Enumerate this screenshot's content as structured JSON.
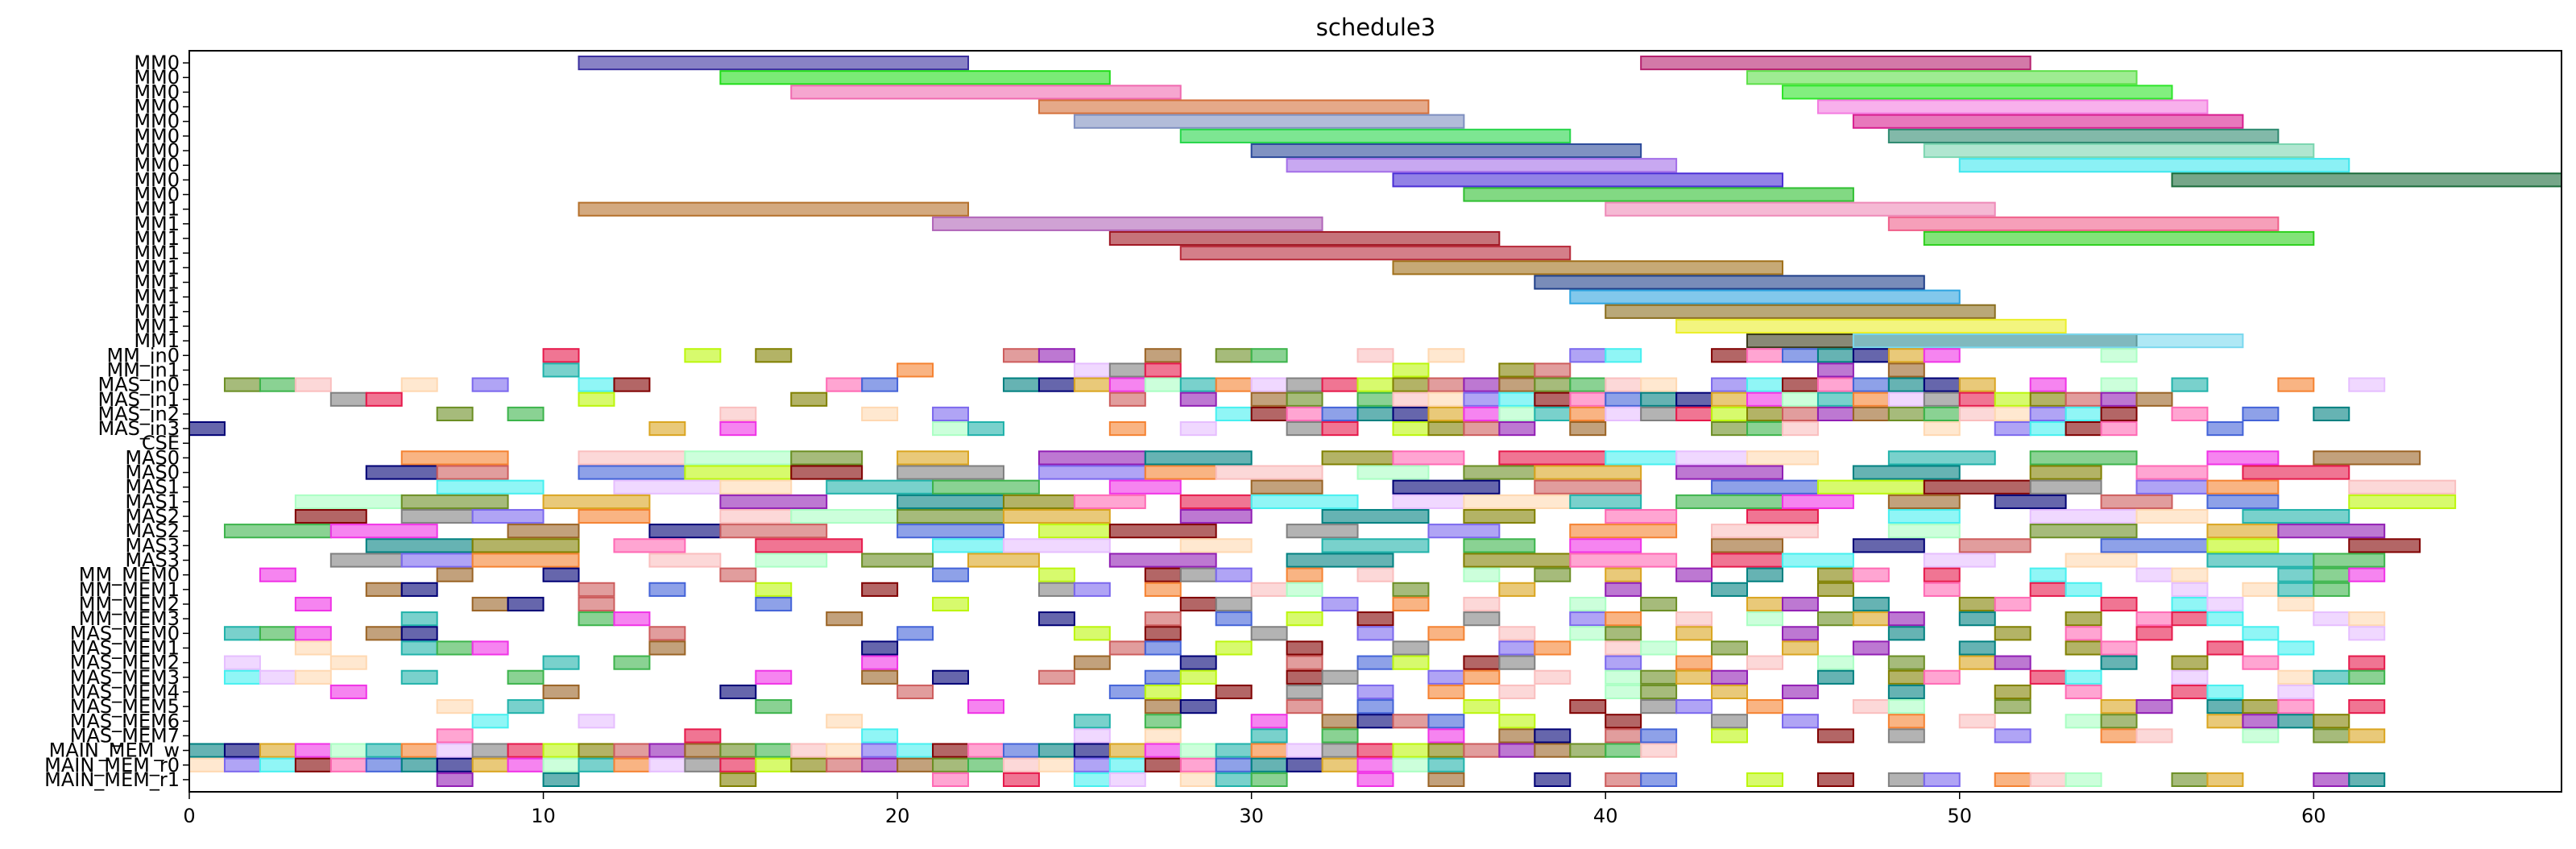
{
  "chart_data": {
    "type": "gantt",
    "title": "schedule3",
    "xlabel": "",
    "ylabel": "",
    "xlim": [
      0,
      67
    ],
    "xticks": [
      0,
      10,
      20,
      30,
      40,
      50,
      60
    ],
    "grid": false,
    "legend": "none",
    "rows": [
      "MM0",
      "MM0",
      "MM0",
      "MM0",
      "MM0",
      "MM0",
      "MM0",
      "MM0",
      "MM0",
      "MM0",
      "MM1",
      "MM1",
      "MM1",
      "MM1",
      "MM1",
      "MM1",
      "MM1",
      "MM1",
      "MM1",
      "MM1",
      "MM_in0",
      "MM_in1",
      "MAS_in0",
      "MAS_in1",
      "MAS_in2",
      "MAS_in3",
      "CSE",
      "MAS0",
      "MAS0",
      "MAS1",
      "MAS1",
      "MAS2",
      "MAS2",
      "MAS3",
      "MAS3",
      "MM_MEM0",
      "MM_MEM1",
      "MM_MEM2",
      "MM_MEM3",
      "MAS_MEM0",
      "MAS_MEM1",
      "MAS_MEM2",
      "MAS_MEM3",
      "MAS_MEM4",
      "MAS_MEM5",
      "MAS_MEM6",
      "MAS_MEM7",
      "MAIN_MEM_w",
      "MAIN_MEM_r0",
      "MAIN_MEM_r1"
    ],
    "tasks": [
      {
        "row": 0,
        "start": 11,
        "end": 22,
        "color": "#3b2f9e"
      },
      {
        "row": 0,
        "start": 41,
        "end": 52,
        "color": "#b5206e"
      },
      {
        "row": 1,
        "start": 15,
        "end": 26,
        "color": "#22dd1a"
      },
      {
        "row": 1,
        "start": 44,
        "end": 55,
        "color": "#5ee04a"
      },
      {
        "row": 2,
        "start": 17,
        "end": 28,
        "color": "#f06ab0"
      },
      {
        "row": 2,
        "start": 45,
        "end": 56,
        "color": "#2ee52a"
      },
      {
        "row": 3,
        "start": 24,
        "end": 35,
        "color": "#d4703a"
      },
      {
        "row": 3,
        "start": 46,
        "end": 57,
        "color": "#f37ce0"
      },
      {
        "row": 4,
        "start": 25,
        "end": 36,
        "color": "#7f8fc0"
      },
      {
        "row": 4,
        "start": 47,
        "end": 58,
        "color": "#d81e8f"
      },
      {
        "row": 5,
        "start": 28,
        "end": 39,
        "color": "#27d64a"
      },
      {
        "row": 5,
        "start": 48,
        "end": 59,
        "color": "#2e8a70"
      },
      {
        "row": 6,
        "start": 30,
        "end": 41,
        "color": "#2b4a9a"
      },
      {
        "row": 6,
        "start": 49,
        "end": 60,
        "color": "#7cd6b0"
      },
      {
        "row": 7,
        "start": 31,
        "end": 42,
        "color": "#a36ee8"
      },
      {
        "row": 7,
        "start": 50,
        "end": 61,
        "color": "#3ee8ee"
      },
      {
        "row": 8,
        "start": 34,
        "end": 45,
        "color": "#4a2ed6"
      },
      {
        "row": 8,
        "start": 56,
        "end": 67,
        "color": "#1a6b3a"
      },
      {
        "row": 9,
        "start": 36,
        "end": 47,
        "color": "#2ebf30"
      },
      {
        "row": 10,
        "start": 11,
        "end": 22,
        "color": "#b5702a"
      },
      {
        "row": 10,
        "start": 40,
        "end": 51,
        "color": "#ee8ab8"
      },
      {
        "row": 11,
        "start": 21,
        "end": 32,
        "color": "#b064b8"
      },
      {
        "row": 11,
        "start": 48,
        "end": 59,
        "color": "#f05f8a"
      },
      {
        "row": 12,
        "start": 26,
        "end": 37,
        "color": "#a01622"
      },
      {
        "row": 12,
        "start": 49,
        "end": 60,
        "color": "#2ed01e"
      },
      {
        "row": 13,
        "start": 28,
        "end": 39,
        "color": "#b82a3a"
      },
      {
        "row": 14,
        "start": 34,
        "end": 45,
        "color": "#a0701a"
      },
      {
        "row": 15,
        "start": 38,
        "end": 49,
        "color": "#1f3f8a"
      },
      {
        "row": 16,
        "start": 39,
        "end": 50,
        "color": "#2ea4e0"
      },
      {
        "row": 17,
        "start": 40,
        "end": 51,
        "color": "#8a6e1e"
      },
      {
        "row": 18,
        "start": 42,
        "end": 53,
        "color": "#ebef2a"
      },
      {
        "row": 19,
        "start": 44,
        "end": 55,
        "color": "#3a3a1a"
      },
      {
        "row": 19,
        "start": 47,
        "end": 58,
        "color": "#7ad8ee"
      }
    ],
    "small_blocks": [
      {
        "start": 0,
        "end": 42,
        "rows": [
          20,
          21,
          22,
          23,
          24,
          25,
          26,
          27,
          28,
          29,
          30,
          31,
          32,
          33,
          34,
          35,
          36,
          37,
          38,
          39,
          40,
          41,
          42,
          43,
          44,
          45,
          46,
          47,
          48,
          49
        ],
        "density": "varies"
      }
    ],
    "dense_rows": {
      "MM_in0": [
        [
          10,
          11
        ],
        [
          14,
          15
        ],
        [
          16,
          17
        ],
        [
          23,
          24
        ],
        [
          24,
          25
        ],
        [
          27,
          28
        ],
        [
          29,
          30
        ],
        [
          30,
          31
        ],
        [
          33,
          34
        ],
        [
          35,
          36
        ],
        [
          39,
          40
        ],
        [
          40,
          41
        ],
        [
          43,
          44
        ],
        [
          44,
          45
        ],
        [
          45,
          46
        ],
        [
          46,
          47
        ],
        [
          47,
          48
        ],
        [
          48,
          49
        ],
        [
          49,
          50
        ],
        [
          54,
          55
        ]
      ],
      "MM_in1": [
        [
          10,
          11
        ],
        [
          20,
          21
        ],
        [
          25,
          26
        ],
        [
          26,
          27
        ],
        [
          27,
          28
        ],
        [
          34,
          35
        ],
        [
          37,
          38
        ],
        [
          38,
          39
        ],
        [
          46,
          47
        ],
        [
          48,
          49
        ]
      ],
      "MAS_in0": [
        [
          1,
          2
        ],
        [
          2,
          3
        ],
        [
          3,
          4
        ],
        [
          6,
          7
        ],
        [
          8,
          9
        ],
        [
          11,
          12
        ],
        [
          12,
          13
        ],
        [
          18,
          19
        ],
        [
          19,
          20
        ],
        [
          23,
          24
        ],
        [
          24,
          25
        ],
        [
          25,
          26
        ],
        [
          26,
          27
        ],
        [
          27,
          28
        ],
        [
          28,
          29
        ],
        [
          29,
          30
        ],
        [
          30,
          31
        ],
        [
          31,
          32
        ],
        [
          32,
          33
        ],
        [
          33,
          34
        ],
        [
          34,
          35
        ],
        [
          35,
          36
        ],
        [
          36,
          37
        ],
        [
          37,
          38
        ],
        [
          38,
          39
        ],
        [
          39,
          40
        ],
        [
          40,
          41
        ],
        [
          41,
          42
        ],
        [
          43,
          44
        ],
        [
          44,
          45
        ],
        [
          45,
          46
        ],
        [
          46,
          47
        ],
        [
          47,
          48
        ],
        [
          48,
          49
        ],
        [
          49,
          50
        ],
        [
          50,
          51
        ],
        [
          52,
          53
        ],
        [
          54,
          55
        ],
        [
          56,
          57
        ],
        [
          59,
          60
        ],
        [
          61,
          62
        ]
      ],
      "MAS_in1": [
        [
          4,
          5
        ],
        [
          5,
          6
        ],
        [
          11,
          12
        ],
        [
          17,
          18
        ],
        [
          26,
          27
        ],
        [
          28,
          29
        ],
        [
          30,
          31
        ],
        [
          31,
          32
        ],
        [
          33,
          34
        ],
        [
          34,
          35
        ],
        [
          35,
          36
        ],
        [
          36,
          37
        ],
        [
          37,
          38
        ],
        [
          38,
          39
        ],
        [
          39,
          40
        ],
        [
          40,
          41
        ],
        [
          41,
          42
        ],
        [
          42,
          43
        ],
        [
          43,
          44
        ],
        [
          44,
          45
        ],
        [
          45,
          46
        ],
        [
          46,
          47
        ],
        [
          47,
          48
        ],
        [
          48,
          49
        ],
        [
          49,
          50
        ],
        [
          50,
          51
        ],
        [
          51,
          52
        ],
        [
          52,
          53
        ],
        [
          53,
          54
        ],
        [
          54,
          55
        ],
        [
          55,
          56
        ]
      ],
      "MAS_in2": [
        [
          7,
          8
        ],
        [
          9,
          10
        ],
        [
          15,
          16
        ],
        [
          19,
          20
        ],
        [
          21,
          22
        ],
        [
          29,
          30
        ],
        [
          30,
          31
        ],
        [
          31,
          32
        ],
        [
          32,
          33
        ],
        [
          33,
          34
        ],
        [
          34,
          35
        ],
        [
          35,
          36
        ],
        [
          36,
          37
        ],
        [
          37,
          38
        ],
        [
          38,
          39
        ],
        [
          39,
          40
        ],
        [
          40,
          41
        ],
        [
          41,
          42
        ],
        [
          42,
          43
        ],
        [
          43,
          44
        ],
        [
          44,
          45
        ],
        [
          45,
          46
        ],
        [
          46,
          47
        ],
        [
          47,
          48
        ],
        [
          48,
          49
        ],
        [
          49,
          50
        ],
        [
          50,
          51
        ],
        [
          51,
          52
        ],
        [
          52,
          53
        ],
        [
          53,
          54
        ],
        [
          54,
          55
        ],
        [
          56,
          57
        ],
        [
          58,
          59
        ],
        [
          60,
          61
        ]
      ],
      "MAS_in3": [
        [
          0,
          1
        ],
        [
          13,
          14
        ],
        [
          15,
          16
        ],
        [
          21,
          22
        ],
        [
          22,
          23
        ],
        [
          26,
          27
        ],
        [
          28,
          29
        ],
        [
          31,
          32
        ],
        [
          32,
          33
        ],
        [
          34,
          35
        ],
        [
          35,
          36
        ],
        [
          36,
          37
        ],
        [
          37,
          38
        ],
        [
          39,
          40
        ],
        [
          43,
          44
        ],
        [
          44,
          45
        ],
        [
          45,
          46
        ],
        [
          49,
          50
        ],
        [
          51,
          52
        ],
        [
          52,
          53
        ],
        [
          53,
          54
        ],
        [
          54,
          55
        ],
        [
          57,
          58
        ]
      ],
      "MAIN_MEM_w": [
        [
          0,
          1
        ],
        [
          1,
          2
        ],
        [
          2,
          3
        ],
        [
          3,
          4
        ],
        [
          4,
          5
        ],
        [
          5,
          6
        ],
        [
          6,
          7
        ],
        [
          7,
          8
        ],
        [
          8,
          9
        ],
        [
          9,
          10
        ],
        [
          10,
          11
        ],
        [
          11,
          12
        ],
        [
          12,
          13
        ],
        [
          13,
          14
        ],
        [
          14,
          15
        ],
        [
          15,
          16
        ],
        [
          16,
          17
        ],
        [
          17,
          18
        ],
        [
          18,
          19
        ],
        [
          19,
          20
        ],
        [
          20,
          21
        ],
        [
          21,
          22
        ],
        [
          22,
          23
        ],
        [
          23,
          24
        ],
        [
          24,
          25
        ],
        [
          25,
          26
        ],
        [
          26,
          27
        ],
        [
          27,
          28
        ],
        [
          28,
          29
        ],
        [
          29,
          30
        ],
        [
          30,
          31
        ],
        [
          31,
          32
        ],
        [
          32,
          33
        ],
        [
          33,
          34
        ],
        [
          34,
          35
        ],
        [
          35,
          36
        ],
        [
          36,
          37
        ],
        [
          37,
          38
        ],
        [
          38,
          39
        ],
        [
          39,
          40
        ],
        [
          40,
          41
        ],
        [
          41,
          42
        ]
      ],
      "MAIN_MEM_r0": [
        [
          0,
          1
        ],
        [
          1,
          2
        ],
        [
          2,
          3
        ],
        [
          3,
          4
        ],
        [
          4,
          5
        ],
        [
          5,
          6
        ],
        [
          6,
          7
        ],
        [
          7,
          8
        ],
        [
          8,
          9
        ],
        [
          9,
          10
        ],
        [
          10,
          11
        ],
        [
          11,
          12
        ],
        [
          12,
          13
        ],
        [
          13,
          14
        ],
        [
          14,
          15
        ],
        [
          15,
          16
        ],
        [
          16,
          17
        ],
        [
          17,
          18
        ],
        [
          18,
          19
        ],
        [
          19,
          20
        ],
        [
          20,
          21
        ],
        [
          21,
          22
        ],
        [
          22,
          23
        ],
        [
          23,
          24
        ],
        [
          24,
          25
        ],
        [
          25,
          26
        ],
        [
          26,
          27
        ],
        [
          27,
          28
        ],
        [
          28,
          29
        ],
        [
          29,
          30
        ],
        [
          30,
          31
        ],
        [
          31,
          32
        ],
        [
          32,
          33
        ],
        [
          33,
          34
        ],
        [
          34,
          35
        ],
        [
          35,
          36
        ]
      ]
    }
  }
}
